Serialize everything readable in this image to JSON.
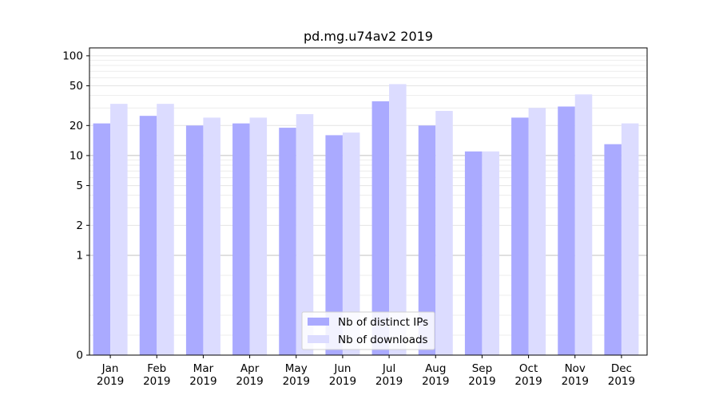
{
  "chart_data": {
    "type": "bar",
    "title": "pd.mg.u74av2 2019",
    "xlabel": "",
    "ylabel": "",
    "yscale": "symlog",
    "ylim": [
      0,
      120
    ],
    "yticks": [
      0,
      1,
      2,
      5,
      10,
      20,
      50,
      100
    ],
    "ytick_labels": [
      "0",
      "1",
      "2",
      "5",
      "10",
      "20",
      "50",
      "100"
    ],
    "categories": [
      "Jan\n2019",
      "Feb\n2019",
      "Mar\n2019",
      "Apr\n2019",
      "May\n2019",
      "Jun\n2019",
      "Jul\n2019",
      "Aug\n2019",
      "Sep\n2019",
      "Oct\n2019",
      "Nov\n2019",
      "Dec\n2019"
    ],
    "series": [
      {
        "name": "Nb of distinct IPs",
        "color": "#aaaaff",
        "values": [
          21,
          25,
          20,
          21,
          19,
          16,
          35,
          20,
          11,
          24,
          31,
          13
        ]
      },
      {
        "name": "Nb of downloads",
        "color": "#dcdcff",
        "values": [
          33,
          33,
          24,
          24,
          26,
          17,
          52,
          28,
          11,
          30,
          41,
          21
        ]
      }
    ],
    "grid": true,
    "legend_position": "lower center"
  }
}
